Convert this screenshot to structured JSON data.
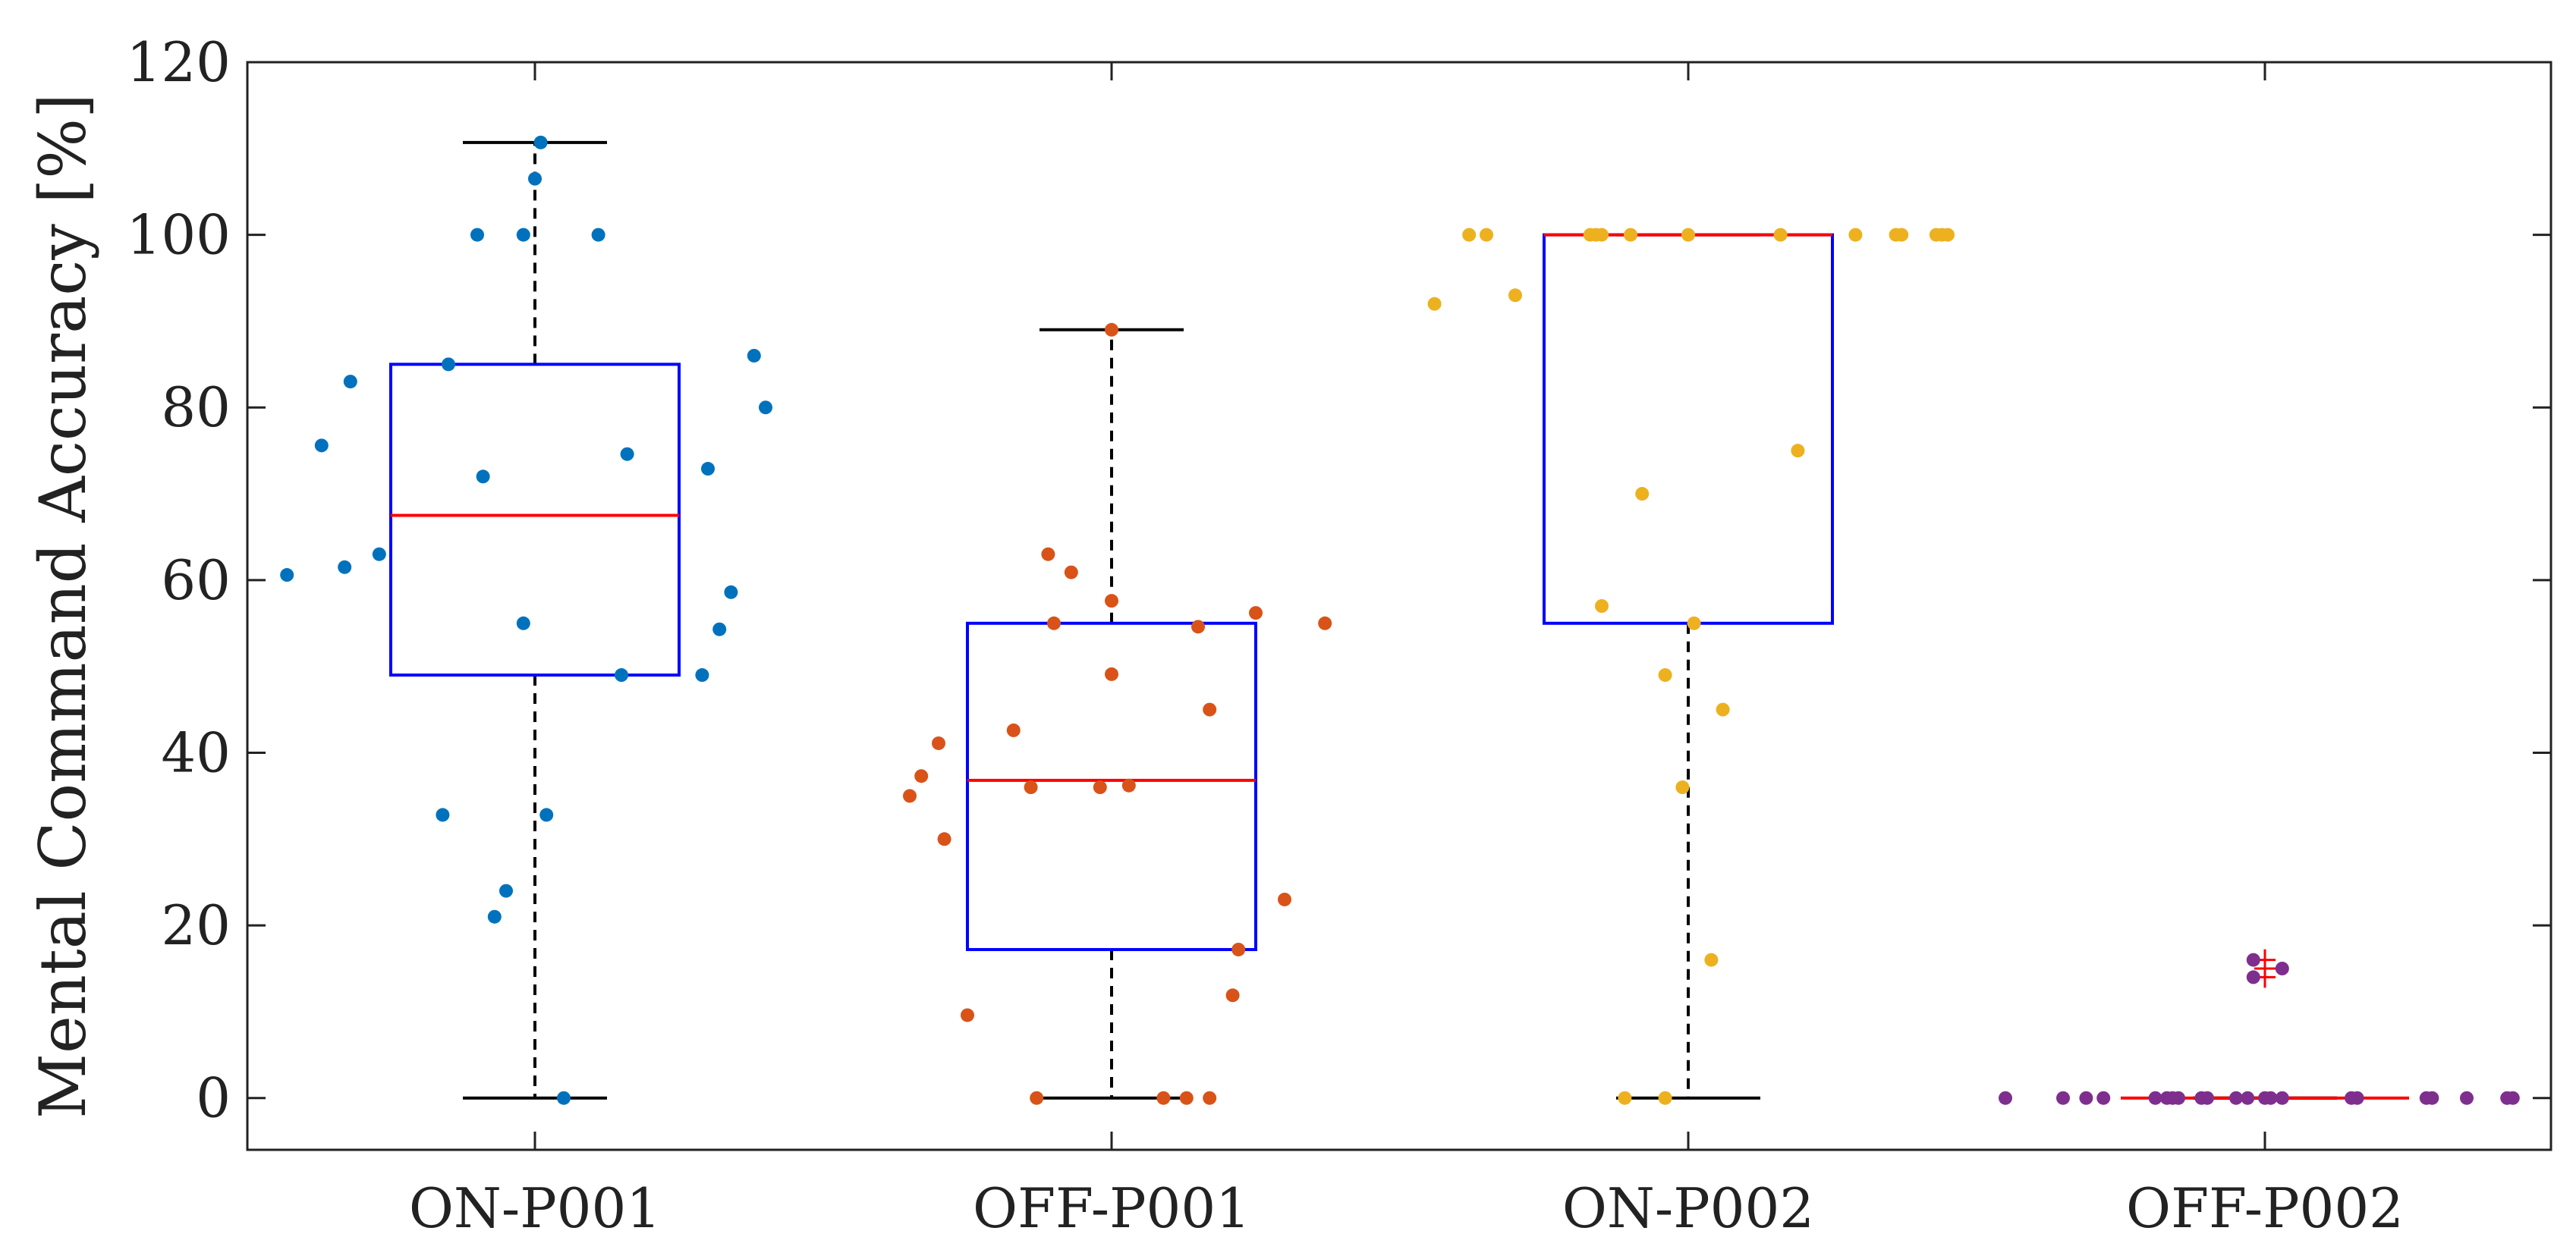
{
  "chart_data": {
    "type": "box",
    "title": "",
    "xlabel": "",
    "ylabel": "Mental Command Accuracy [%]",
    "ylim": [
      -6,
      120
    ],
    "yticks": [
      0,
      20,
      40,
      60,
      80,
      100,
      120
    ],
    "categories": [
      "ON-P001",
      "OFF-P001",
      "ON-P002",
      "OFF-P002"
    ],
    "grid": false,
    "colors": {
      "box": "#0000ff",
      "median": "#ff0000",
      "whisker": "#000000",
      "outlier": "#ff0000",
      "axes": "#222222"
    },
    "boxes": [
      {
        "name": "ON-P001",
        "q1": 49,
        "median": 67.5,
        "q3": 85,
        "whisker_low": 0,
        "whisker_high": 110.7,
        "outliers": []
      },
      {
        "name": "OFF-P001",
        "q1": 17.2,
        "median": 36.8,
        "q3": 55,
        "whisker_low": 0,
        "whisker_high": 89,
        "outliers": []
      },
      {
        "name": "ON-P002",
        "q1": 55,
        "median": 100,
        "q3": 100,
        "whisker_low": 0,
        "whisker_high": 100,
        "outliers": []
      },
      {
        "name": "OFF-P002",
        "q1": 0,
        "median": 0,
        "q3": 0,
        "whisker_low": 0,
        "whisker_high": 0,
        "outliers": [
          14,
          15,
          16
        ]
      }
    ],
    "series": [
      {
        "name": "ON-P001",
        "color": "#0072bd",
        "points": [
          {
            "x": -0.43,
            "y": 60.6
          },
          {
            "x": -0.37,
            "y": 75.6
          },
          {
            "x": -0.33,
            "y": 61.5
          },
          {
            "x": -0.32,
            "y": 83
          },
          {
            "x": -0.27,
            "y": 63
          },
          {
            "x": -0.16,
            "y": 32.8
          },
          {
            "x": -0.15,
            "y": 85
          },
          {
            "x": -0.07,
            "y": 21
          },
          {
            "x": -0.09,
            "y": 72
          },
          {
            "x": -0.05,
            "y": 24
          },
          {
            "x": -0.1,
            "y": 100
          },
          {
            "x": -0.02,
            "y": 100
          },
          {
            "x": -0.02,
            "y": 55
          },
          {
            "x": 0,
            "y": 106.5
          },
          {
            "x": 0.01,
            "y": 110.7
          },
          {
            "x": 0.02,
            "y": 32.8
          },
          {
            "x": 0.05,
            "y": 0
          },
          {
            "x": 0.11,
            "y": 100
          },
          {
            "x": 0.15,
            "y": 49
          },
          {
            "x": 0.16,
            "y": 74.6
          },
          {
            "x": 0.29,
            "y": 49
          },
          {
            "x": 0.3,
            "y": 72.9
          },
          {
            "x": 0.32,
            "y": 54.3
          },
          {
            "x": 0.34,
            "y": 58.6
          },
          {
            "x": 0.38,
            "y": 86
          },
          {
            "x": 0.4,
            "y": 80
          }
        ]
      },
      {
        "name": "OFF-P001",
        "color": "#d95319",
        "points": [
          {
            "x": -0.35,
            "y": 35
          },
          {
            "x": -0.33,
            "y": 37.3
          },
          {
            "x": -0.3,
            "y": 41.1
          },
          {
            "x": -0.29,
            "y": 30
          },
          {
            "x": -0.25,
            "y": 9.6
          },
          {
            "x": -0.17,
            "y": 42.6
          },
          {
            "x": -0.14,
            "y": 36
          },
          {
            "x": -0.13,
            "y": 0
          },
          {
            "x": -0.11,
            "y": 63
          },
          {
            "x": -0.1,
            "y": 55
          },
          {
            "x": -0.07,
            "y": 60.9
          },
          {
            "x": -0.02,
            "y": 36
          },
          {
            "x": 0,
            "y": 49.1
          },
          {
            "x": 0,
            "y": 57.6
          },
          {
            "x": 0,
            "y": 89
          },
          {
            "x": 0.03,
            "y": 36.2
          },
          {
            "x": 0.09,
            "y": 0
          },
          {
            "x": 0.13,
            "y": 0
          },
          {
            "x": 0.15,
            "y": 54.6
          },
          {
            "x": 0.17,
            "y": 0
          },
          {
            "x": 0.17,
            "y": 45
          },
          {
            "x": 0.21,
            "y": 11.9
          },
          {
            "x": 0.22,
            "y": 17.2
          },
          {
            "x": 0.25,
            "y": 56.2
          },
          {
            "x": 0.3,
            "y": 23
          },
          {
            "x": 0.37,
            "y": 55
          }
        ]
      },
      {
        "name": "ON-P002",
        "color": "#edb120",
        "points": [
          {
            "x": -0.44,
            "y": 92
          },
          {
            "x": -0.38,
            "y": 100
          },
          {
            "x": -0.35,
            "y": 100
          },
          {
            "x": -0.3,
            "y": 93
          },
          {
            "x": -0.17,
            "y": 100
          },
          {
            "x": -0.16,
            "y": 100
          },
          {
            "x": -0.15,
            "y": 100
          },
          {
            "x": -0.15,
            "y": 57
          },
          {
            "x": -0.11,
            "y": 0
          },
          {
            "x": -0.1,
            "y": 100
          },
          {
            "x": -0.04,
            "y": 0
          },
          {
            "x": -0.08,
            "y": 70
          },
          {
            "x": -0.04,
            "y": 49
          },
          {
            "x": -0.01,
            "y": 36
          },
          {
            "x": 0,
            "y": 100
          },
          {
            "x": 0.01,
            "y": 55
          },
          {
            "x": 0.04,
            "y": 16
          },
          {
            "x": 0.06,
            "y": 45
          },
          {
            "x": 0.16,
            "y": 100
          },
          {
            "x": 0.19,
            "y": 75
          },
          {
            "x": 0.29,
            "y": 100
          },
          {
            "x": 0.36,
            "y": 100
          },
          {
            "x": 0.37,
            "y": 100
          },
          {
            "x": 0.43,
            "y": 100
          },
          {
            "x": 0.44,
            "y": 100
          },
          {
            "x": 0.45,
            "y": 100
          }
        ]
      },
      {
        "name": "OFF-P002",
        "color": "#7e2f8e",
        "points": [
          {
            "x": -0.45,
            "y": 0
          },
          {
            "x": -0.35,
            "y": 0
          },
          {
            "x": -0.31,
            "y": 0
          },
          {
            "x": -0.28,
            "y": 0
          },
          {
            "x": -0.19,
            "y": 0
          },
          {
            "x": -0.17,
            "y": 0
          },
          {
            "x": -0.16,
            "y": 0
          },
          {
            "x": -0.15,
            "y": 0
          },
          {
            "x": -0.11,
            "y": 0
          },
          {
            "x": -0.1,
            "y": 0
          },
          {
            "x": -0.05,
            "y": 0
          },
          {
            "x": -0.03,
            "y": 0
          },
          {
            "x": -0.02,
            "y": 16
          },
          {
            "x": -0.02,
            "y": 14
          },
          {
            "x": 0,
            "y": 0
          },
          {
            "x": 0.01,
            "y": 0
          },
          {
            "x": 0.03,
            "y": 15
          },
          {
            "x": 0.03,
            "y": 0
          },
          {
            "x": 0.15,
            "y": 0
          },
          {
            "x": 0.16,
            "y": 0
          },
          {
            "x": 0.28,
            "y": 0
          },
          {
            "x": 0.29,
            "y": 0
          },
          {
            "x": 0.35,
            "y": 0
          },
          {
            "x": 0.42,
            "y": 0
          },
          {
            "x": 0.43,
            "y": 0
          }
        ]
      }
    ]
  }
}
